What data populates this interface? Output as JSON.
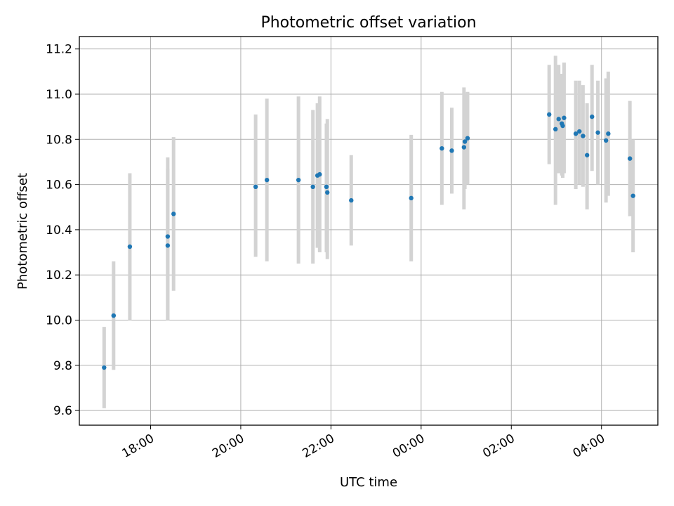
{
  "chart_data": {
    "type": "scatter",
    "title": "Photometric offset variation",
    "xlabel": "UTC time",
    "ylabel": "Photometric offset",
    "x_tick_labels": [
      "18:00",
      "20:00",
      "22:00",
      "00:00",
      "02:00",
      "04:00"
    ],
    "x_tick_hours": [
      18,
      20,
      22,
      24,
      26,
      28
    ],
    "xlim_hours": [
      16.42,
      29.25
    ],
    "y_ticks": [
      9.6,
      9.8,
      10.0,
      10.2,
      10.4,
      10.6,
      10.8,
      11.0,
      11.2
    ],
    "y_tick_labels": [
      "9.6",
      "9.8",
      "10.0",
      "10.2",
      "10.4",
      "10.6",
      "10.8",
      "11.0",
      "11.2"
    ],
    "ylim": [
      9.535,
      11.255
    ],
    "grid": true,
    "point_color": "#1f77b4",
    "errorbar_color": "#d3d3d3",
    "points": [
      {
        "t": 16.97,
        "y": 9.79,
        "lo": 9.61,
        "hi": 9.97
      },
      {
        "t": 17.18,
        "y": 10.02,
        "lo": 9.78,
        "hi": 10.26
      },
      {
        "t": 17.54,
        "y": 10.325,
        "lo": 10.0,
        "hi": 10.65
      },
      {
        "t": 18.38,
        "y": 10.33,
        "lo": 10.0,
        "hi": 10.67
      },
      {
        "t": 18.38,
        "y": 10.37,
        "lo": 10.0,
        "hi": 10.72
      },
      {
        "t": 18.51,
        "y": 10.47,
        "lo": 10.13,
        "hi": 10.81
      },
      {
        "t": 20.33,
        "y": 10.59,
        "lo": 10.28,
        "hi": 10.91
      },
      {
        "t": 20.58,
        "y": 10.62,
        "lo": 10.26,
        "hi": 10.98
      },
      {
        "t": 21.28,
        "y": 10.62,
        "lo": 10.25,
        "hi": 10.99
      },
      {
        "t": 21.6,
        "y": 10.59,
        "lo": 10.25,
        "hi": 10.93
      },
      {
        "t": 21.7,
        "y": 10.64,
        "lo": 10.32,
        "hi": 10.96
      },
      {
        "t": 21.75,
        "y": 10.645,
        "lo": 10.3,
        "hi": 10.99
      },
      {
        "t": 21.9,
        "y": 10.59,
        "lo": 10.3,
        "hi": 10.87
      },
      {
        "t": 21.92,
        "y": 10.565,
        "lo": 10.27,
        "hi": 10.89
      },
      {
        "t": 22.45,
        "y": 10.53,
        "lo": 10.33,
        "hi": 10.73
      },
      {
        "t": 23.78,
        "y": 10.54,
        "lo": 10.26,
        "hi": 10.82
      },
      {
        "t": 24.46,
        "y": 10.76,
        "lo": 10.51,
        "hi": 11.01
      },
      {
        "t": 24.68,
        "y": 10.75,
        "lo": 10.56,
        "hi": 10.94
      },
      {
        "t": 24.95,
        "y": 10.765,
        "lo": 10.49,
        "hi": 11.03
      },
      {
        "t": 24.97,
        "y": 10.79,
        "lo": 10.58,
        "hi": 11.0
      },
      {
        "t": 25.03,
        "y": 10.805,
        "lo": 10.6,
        "hi": 11.01
      },
      {
        "t": 26.84,
        "y": 10.91,
        "lo": 10.69,
        "hi": 11.13
      },
      {
        "t": 26.98,
        "y": 10.845,
        "lo": 10.51,
        "hi": 11.17
      },
      {
        "t": 27.05,
        "y": 10.89,
        "lo": 10.65,
        "hi": 11.13
      },
      {
        "t": 27.12,
        "y": 10.87,
        "lo": 10.64,
        "hi": 11.09
      },
      {
        "t": 27.14,
        "y": 10.86,
        "lo": 10.63,
        "hi": 11.09
      },
      {
        "t": 27.17,
        "y": 10.895,
        "lo": 10.65,
        "hi": 11.14
      },
      {
        "t": 27.43,
        "y": 10.825,
        "lo": 10.58,
        "hi": 11.06
      },
      {
        "t": 27.51,
        "y": 10.835,
        "lo": 10.6,
        "hi": 11.06
      },
      {
        "t": 27.59,
        "y": 10.815,
        "lo": 10.59,
        "hi": 11.04
      },
      {
        "t": 27.68,
        "y": 10.73,
        "lo": 10.49,
        "hi": 10.96
      },
      {
        "t": 27.79,
        "y": 10.9,
        "lo": 10.66,
        "hi": 11.13
      },
      {
        "t": 27.92,
        "y": 10.83,
        "lo": 10.6,
        "hi": 11.06
      },
      {
        "t": 28.1,
        "y": 10.795,
        "lo": 10.52,
        "hi": 11.07
      },
      {
        "t": 28.15,
        "y": 10.825,
        "lo": 10.55,
        "hi": 11.1
      },
      {
        "t": 28.63,
        "y": 10.715,
        "lo": 10.46,
        "hi": 10.97
      },
      {
        "t": 28.7,
        "y": 10.55,
        "lo": 10.3,
        "hi": 10.8
      }
    ]
  }
}
